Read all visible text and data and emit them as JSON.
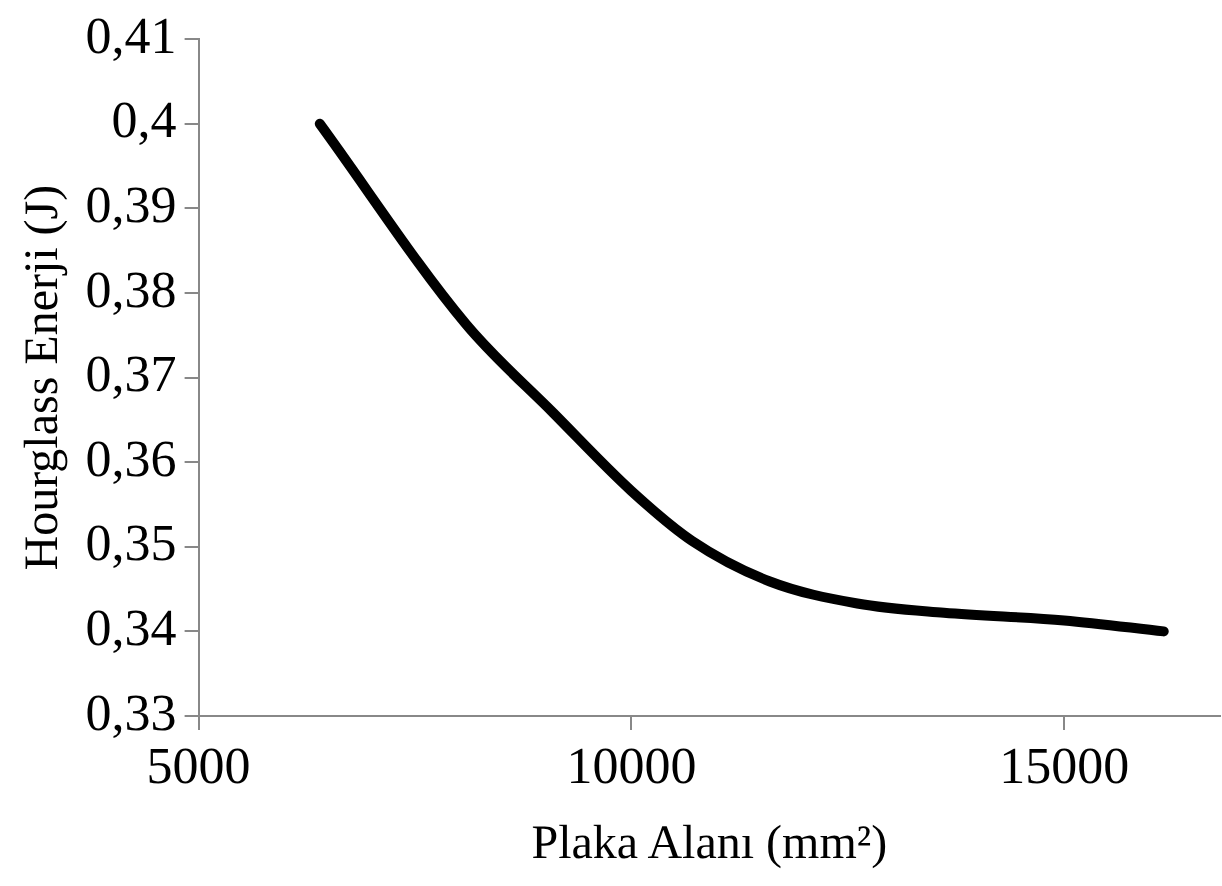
{
  "chart_data": {
    "type": "line",
    "xlabel": "Plaka Alanı (mm²)",
    "ylabel": "Hourglass Enerji (J)",
    "x": [
      6400,
      8090,
      9100,
      10000,
      10700,
      11600,
      12610,
      13610,
      15000,
      16150
    ],
    "series": [
      {
        "color": "#000000",
        "values": [
          0.4,
          0.3763,
          0.3658,
          0.3566,
          0.3507,
          0.3459,
          0.3433,
          0.3422,
          0.3413,
          0.34
        ]
      }
    ],
    "xlim": [
      5000,
      16800
    ],
    "xticks": [
      {
        "value": 5000,
        "label": "5000"
      },
      {
        "value": 10000,
        "label": "10000"
      },
      {
        "value": 15000,
        "label": "15000"
      }
    ],
    "ylim": [
      0.33,
      0.41
    ],
    "yticks": [
      {
        "value": 0.33,
        "label": "0,33"
      },
      {
        "value": 0.34,
        "label": "0,34"
      },
      {
        "value": 0.35,
        "label": "0,35"
      },
      {
        "value": 0.36,
        "label": "0,36"
      },
      {
        "value": 0.37,
        "label": "0,37"
      },
      {
        "value": 0.38,
        "label": "0,38"
      },
      {
        "value": 0.39,
        "label": "0,39"
      },
      {
        "value": 0.4,
        "label": "0,4"
      },
      {
        "value": 0.41,
        "label": "0,41"
      }
    ],
    "grid": false,
    "legend": false,
    "marker": "none",
    "line_style": "solid"
  }
}
